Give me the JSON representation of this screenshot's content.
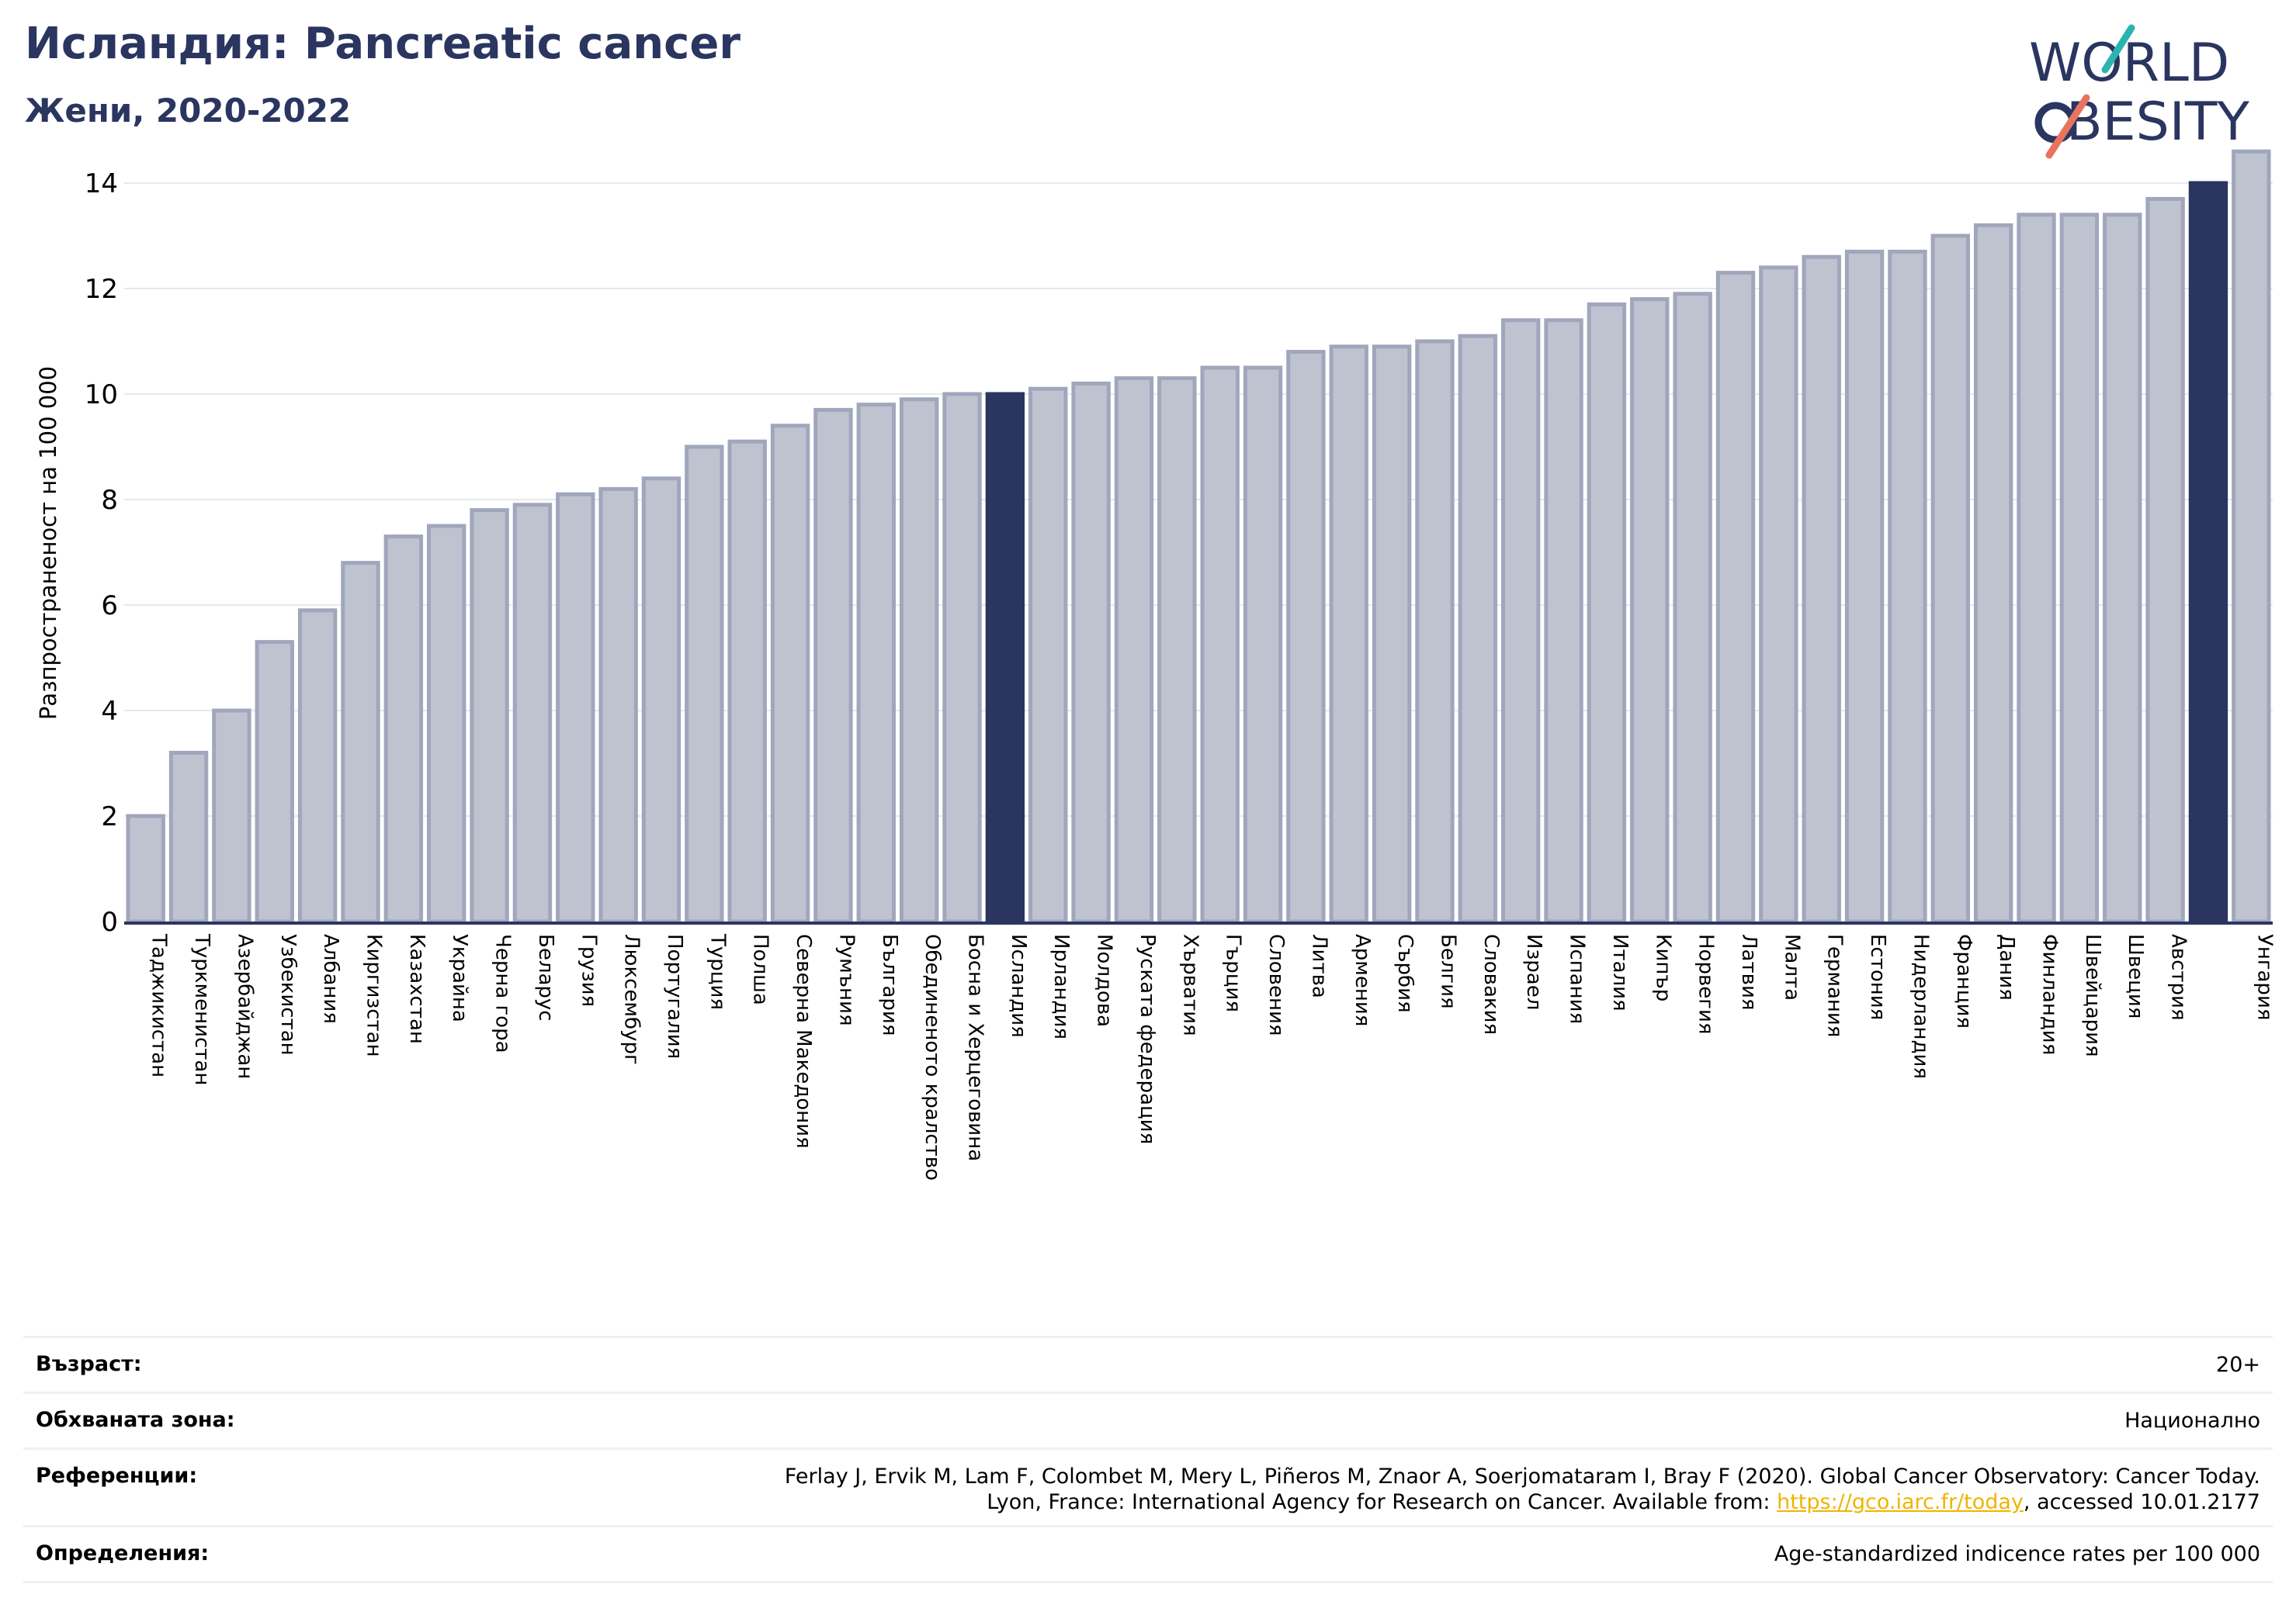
{
  "title": "Исландия: Pancreatic cancer",
  "subtitle": "Жени, 2020-2022",
  "logo": {
    "line1": "W",
    "o_letter": "O",
    "line1_rest": "RLD",
    "line2": "BESITY",
    "accent_teal": "#2bb3b1",
    "accent_coral": "#e8745f",
    "navy": "#2a3560"
  },
  "colors": {
    "bar": "#bfc3d0",
    "bar_border": "#a0a6bc",
    "highlight": "#2a3560",
    "grid": "#e6e8ee",
    "axis": "#2a3560"
  },
  "chart_data": {
    "type": "bar",
    "title": "",
    "ylabel": "Разпространеност  на 100 000",
    "ylim": [
      0,
      15
    ],
    "yticks": [
      0,
      2,
      4,
      6,
      8,
      10,
      12,
      14
    ],
    "grid": true,
    "highlighted": [
      "Исландия",
      "Средна стойност"
    ],
    "categories": [
      "Таджикистан",
      "Туркменистан",
      "Азербайджан",
      "Узбекистан",
      "Албания",
      "Киргизстан",
      "Казахстан",
      "Украйна",
      "Черна гора",
      "Беларус",
      "Грузия",
      "Люксембург",
      "Португалия",
      "Турция",
      "Полша",
      "Северна Македония",
      "Румъния",
      "България",
      "Обединеното кралство",
      "Босна и Херцеговина",
      "Исландия",
      "Ирландия",
      "Молдова",
      "Руската федерация",
      "Хърватия",
      "Гърция",
      "Словения",
      "Литва",
      "Армения",
      "Сърбия",
      "Белгия",
      "Словакия",
      "Израел",
      "Испания",
      "Италия",
      "Кипър",
      "Норвегия",
      "Латвия",
      "Малта",
      "Германия",
      "Естония",
      "Нидерландия",
      "Франция",
      "Дания",
      "Финландия",
      "Швейцария",
      "Швеция",
      "Австрия",
      "",
      "Унгария"
    ],
    "values": [
      2.0,
      3.2,
      4.0,
      5.3,
      5.9,
      6.8,
      7.3,
      7.5,
      7.8,
      7.9,
      8.1,
      8.2,
      8.4,
      9.0,
      9.1,
      9.4,
      9.7,
      9.8,
      9.9,
      10.0,
      10.0,
      10.1,
      10.2,
      10.3,
      10.3,
      10.5,
      10.5,
      10.8,
      10.9,
      10.9,
      11.0,
      11.1,
      11.4,
      11.4,
      11.7,
      11.8,
      11.9,
      12.3,
      12.4,
      12.6,
      12.7,
      12.7,
      13.0,
      13.2,
      13.4,
      13.4,
      13.4,
      13.7,
      14.0,
      14.6
    ]
  },
  "meta": {
    "age": {
      "label": "Възраст:",
      "value": "20+"
    },
    "coverage": {
      "label": "Обхваната зона:",
      "value": "Национално"
    },
    "references": {
      "label": "Референции:",
      "line1": "Ferlay J, Ervik M, Lam F, Colombet M, Mery L, Piñeros M, Znaor A, Soerjomataram I, Bray F (2020). Global Cancer Observatory: Cancer Today.",
      "line2_prefix": "Lyon, France: International Agency for Research on Cancer. Available from: ",
      "link": "https://gco.iarc.fr/today",
      "line2_suffix": ", accessed 10.01.2177"
    },
    "definitions": {
      "label": "Определения:",
      "value": "Age-standardized indicence rates per 100 000"
    }
  }
}
